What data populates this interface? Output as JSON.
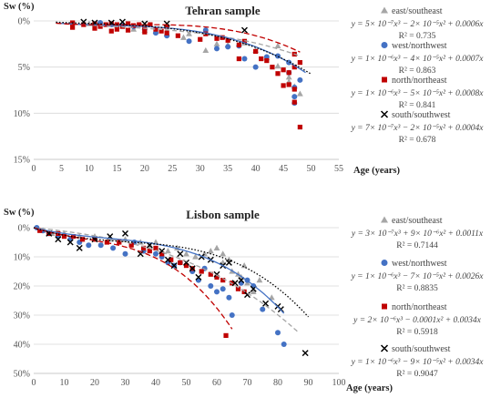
{
  "chart_data": [
    {
      "type": "scatter",
      "title": "Tehran sample",
      "ylabel": "Sw (%)",
      "xlabel": "Age (years)",
      "xlim": [
        0,
        55
      ],
      "ylim": [
        0,
        15
      ],
      "y_inverted": true,
      "x_ticks": [
        "0",
        "5",
        "10",
        "15",
        "20",
        "25",
        "30",
        "35",
        "40",
        "45",
        "50",
        "55"
      ],
      "y_ticks": [
        "0%",
        "5%",
        "10%",
        "15%"
      ],
      "grid": "horizontal",
      "legend_position": "right",
      "series": [
        {
          "name": "east/southeast",
          "marker": "triangle",
          "color": "#a6a6a6",
          "points": [
            [
              10,
              0.3
            ],
            [
              14,
              0.4
            ],
            [
              16,
              0.6
            ],
            [
              18,
              0.9
            ],
            [
              20,
              1.0
            ],
            [
              22,
              1.1
            ],
            [
              24,
              1.4
            ],
            [
              27,
              1.8
            ],
            [
              28,
              1.4
            ],
            [
              31,
              3.2
            ],
            [
              33,
              2.5
            ],
            [
              35,
              2.6
            ],
            [
              38,
              2.4
            ],
            [
              40,
              3.2
            ],
            [
              42,
              4.0
            ],
            [
              44,
              2.7
            ],
            [
              44,
              4.9
            ],
            [
              46,
              6.1
            ],
            [
              46,
              6.6
            ],
            [
              47,
              7.1
            ],
            [
              48,
              7.9
            ]
          ],
          "equation": "y = 5× 10⁻⁷x³ − 2× 10⁻⁵x² + 0.0006x",
          "r2": "R² = 0.735"
        },
        {
          "name": "west/northwest",
          "marker": "circle",
          "color": "#4472c4",
          "points": [
            [
              12,
              0.2
            ],
            [
              14,
              0.4
            ],
            [
              16,
              0.5
            ],
            [
              18,
              0.6
            ],
            [
              20,
              0.9
            ],
            [
              22,
              1.3
            ],
            [
              24,
              1.6
            ],
            [
              28,
              2.2
            ],
            [
              31,
              1.0
            ],
            [
              33,
              3.0
            ],
            [
              35,
              2.8
            ],
            [
              37,
              2.7
            ],
            [
              38,
              4.1
            ],
            [
              40,
              5.0
            ],
            [
              42,
              3.9
            ],
            [
              44,
              3.8
            ],
            [
              46,
              4.5
            ],
            [
              46,
              5.6
            ],
            [
              47,
              7.2
            ],
            [
              47,
              8.2
            ],
            [
              47,
              8.9
            ],
            [
              48,
              6.4
            ]
          ],
          "equation": "y = 1× 10⁻⁶x³ − 4× 10⁻⁵x² + 0.0007x",
          "r2": "R² = 0.863"
        },
        {
          "name": "north/northeast",
          "marker": "square",
          "color": "#c00000",
          "points": [
            [
              7,
              0.2
            ],
            [
              7,
              0.7
            ],
            [
              9,
              0.4
            ],
            [
              11,
              0.3
            ],
            [
              11,
              0.8
            ],
            [
              12,
              0.6
            ],
            [
              13,
              0.4
            ],
            [
              14,
              0.3
            ],
            [
              14,
              1.1
            ],
            [
              15,
              0.4
            ],
            [
              15,
              0.9
            ],
            [
              16,
              0.6
            ],
            [
              17,
              0.3
            ],
            [
              17,
              1.0
            ],
            [
              18,
              0.5
            ],
            [
              19,
              0.4
            ],
            [
              20,
              0.7
            ],
            [
              20,
              1.2
            ],
            [
              21,
              0.4
            ],
            [
              22,
              0.9
            ],
            [
              23,
              1.1
            ],
            [
              24,
              0.6
            ],
            [
              24,
              1.3
            ],
            [
              26,
              1.6
            ],
            [
              30,
              2.0
            ],
            [
              31,
              1.4
            ],
            [
              33,
              1.9
            ],
            [
              34,
              1.8
            ],
            [
              35,
              2.1
            ],
            [
              37,
              2.6
            ],
            [
              37,
              4.1
            ],
            [
              38,
              2.2
            ],
            [
              40,
              3.3
            ],
            [
              41,
              4.1
            ],
            [
              42,
              4.3
            ],
            [
              43,
              5.0
            ],
            [
              44,
              5.7
            ],
            [
              45,
              5.3
            ],
            [
              45,
              7.0
            ],
            [
              46,
              5.6
            ],
            [
              46,
              6.9
            ],
            [
              47,
              3.6
            ],
            [
              47,
              5.0
            ],
            [
              47,
              7.4
            ],
            [
              47,
              8.8
            ],
            [
              48,
              4.5
            ],
            [
              48,
              11.5
            ]
          ],
          "equation": "y = 1× 10⁻⁶x³ − 5× 10⁻⁵x² + 0.0008x",
          "r2": "R² = 0.841"
        },
        {
          "name": "south/southwest",
          "marker": "cross",
          "color": "#000000",
          "points": [
            [
              9,
              0.1
            ],
            [
              11,
              0.2
            ],
            [
              14,
              0.2
            ],
            [
              16,
              0.1
            ],
            [
              20,
              0.3
            ],
            [
              24,
              0.3
            ],
            [
              38,
              1.0
            ]
          ],
          "equation": "y = 7× 10⁻⁷x³ − 2× 10⁻⁵x² + 0.0004x",
          "r2": "R² = 0.678"
        }
      ]
    },
    {
      "type": "scatter",
      "title": "Lisbon sample",
      "ylabel": "Sw (%)",
      "xlabel": "Age (years)",
      "xlim": [
        0,
        100
      ],
      "ylim": [
        0,
        50
      ],
      "y_inverted": true,
      "x_ticks": [
        "0",
        "10",
        "20",
        "30",
        "40",
        "50",
        "60",
        "70",
        "80",
        "90",
        "100"
      ],
      "y_ticks": [
        "0%",
        "10%",
        "20%",
        "30%",
        "40%",
        "50%"
      ],
      "grid": "horizontal",
      "legend_position": "right",
      "series": [
        {
          "name": "east/southeast",
          "marker": "triangle",
          "color": "#a6a6a6",
          "points": [
            [
              3,
              1
            ],
            [
              6,
              2
            ],
            [
              10,
              2
            ],
            [
              15,
              3
            ],
            [
              20,
              3
            ],
            [
              25,
              4
            ],
            [
              30,
              4
            ],
            [
              35,
              5
            ],
            [
              38,
              6
            ],
            [
              40,
              5
            ],
            [
              44,
              8
            ],
            [
              47,
              7
            ],
            [
              50,
              9
            ],
            [
              53,
              10
            ],
            [
              56,
              9
            ],
            [
              58,
              8
            ],
            [
              60,
              7
            ],
            [
              62,
              9
            ],
            [
              62,
              12
            ],
            [
              64,
              11
            ],
            [
              65,
              15
            ],
            [
              67,
              16
            ],
            [
              68,
              17
            ],
            [
              69,
              13
            ],
            [
              70,
              19
            ],
            [
              72,
              22
            ],
            [
              74,
              18
            ],
            [
              78,
              24
            ]
          ],
          "equation": "y = 3× 10⁻⁷x³ + 9× 10⁻⁶x² + 0.0011x",
          "r2": "R² = 0.7144"
        },
        {
          "name": "west/northwest",
          "marker": "circle",
          "color": "#4472c4",
          "points": [
            [
              1,
              0
            ],
            [
              3,
              1
            ],
            [
              5,
              2
            ],
            [
              8,
              3
            ],
            [
              12,
              4
            ],
            [
              15,
              5
            ],
            [
              18,
              6
            ],
            [
              22,
              6
            ],
            [
              26,
              7
            ],
            [
              30,
              9
            ],
            [
              33,
              5
            ],
            [
              36,
              8
            ],
            [
              40,
              9
            ],
            [
              42,
              10
            ],
            [
              44,
              12
            ],
            [
              46,
              13
            ],
            [
              48,
              12
            ],
            [
              52,
              15
            ],
            [
              54,
              18
            ],
            [
              56,
              14
            ],
            [
              58,
              20
            ],
            [
              60,
              22
            ],
            [
              62,
              21
            ],
            [
              64,
              24
            ],
            [
              65,
              30
            ],
            [
              68,
              19
            ],
            [
              70,
              18
            ],
            [
              72,
              20
            ],
            [
              75,
              28
            ],
            [
              80,
              36
            ],
            [
              82,
              40
            ]
          ],
          "equation": "y = 1× 10⁻⁶x³ − 7× 10⁻⁵x² + 0.0026x",
          "r2": "R² = 0.8835"
        },
        {
          "name": "north/northeast",
          "marker": "square",
          "color": "#c00000",
          "points": [
            [
              2,
              1
            ],
            [
              5,
              2
            ],
            [
              8,
              2
            ],
            [
              10,
              3
            ],
            [
              13,
              3
            ],
            [
              16,
              4
            ],
            [
              20,
              4
            ],
            [
              24,
              5
            ],
            [
              28,
              5
            ],
            [
              32,
              6
            ],
            [
              36,
              7
            ],
            [
              38,
              8
            ],
            [
              40,
              7
            ],
            [
              42,
              9
            ],
            [
              45,
              11
            ],
            [
              48,
              12
            ],
            [
              50,
              13
            ],
            [
              52,
              14
            ],
            [
              55,
              15
            ],
            [
              58,
              16
            ],
            [
              60,
              17
            ],
            [
              62,
              18
            ],
            [
              63,
              37
            ],
            [
              65,
              19
            ],
            [
              67,
              21
            ],
            [
              69,
              22
            ]
          ],
          "equation": "y = 2× 10⁻⁶x³ − 0.0001x² + 0.0034x",
          "r2": "R² = 0.5918"
        },
        {
          "name": "south/southwest",
          "marker": "cross",
          "color": "#000000",
          "points": [
            [
              5,
              2
            ],
            [
              8,
              4
            ],
            [
              12,
              5
            ],
            [
              15,
              7
            ],
            [
              20,
              4
            ],
            [
              25,
              3
            ],
            [
              30,
              2
            ],
            [
              35,
              9
            ],
            [
              38,
              6
            ],
            [
              42,
              8
            ],
            [
              44,
              11
            ],
            [
              46,
              13
            ],
            [
              48,
              9
            ],
            [
              50,
              12
            ],
            [
              52,
              14
            ],
            [
              54,
              17
            ],
            [
              55,
              10
            ],
            [
              58,
              11
            ],
            [
              60,
              16
            ],
            [
              62,
              13
            ],
            [
              64,
              12
            ],
            [
              66,
              19
            ],
            [
              68,
              18
            ],
            [
              70,
              23
            ],
            [
              72,
              21
            ],
            [
              76,
              26
            ],
            [
              80,
              27
            ],
            [
              81,
              28
            ],
            [
              89,
              43
            ]
          ],
          "equation": "y = 1× 10⁻⁶x³ − 9× 10⁻⁵x² + 0.0034x",
          "r2": "R² = 0.9047"
        }
      ]
    }
  ]
}
